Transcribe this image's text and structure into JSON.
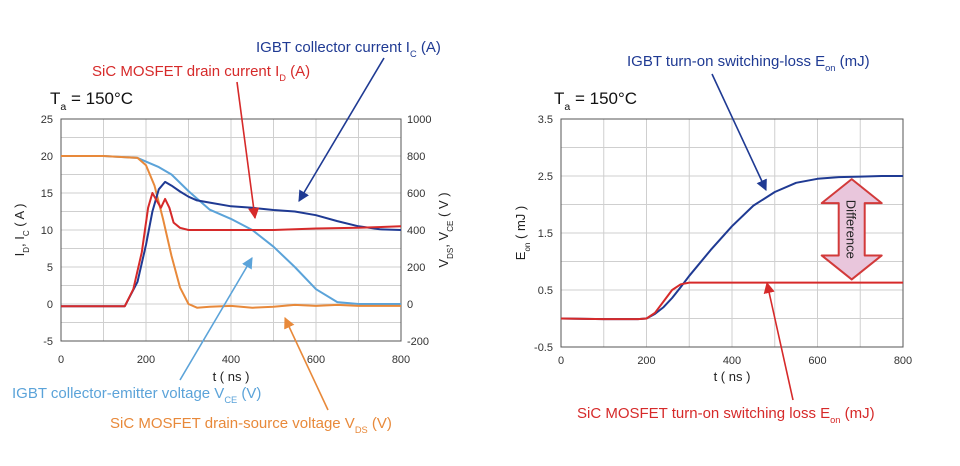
{
  "colors": {
    "ic": "#1f3a93",
    "id": "#d62a2a",
    "vce": "#5ba3d9",
    "vds": "#e8893a",
    "arrow_fill": "#e9c6dc",
    "arrow_stroke": "#d23a3a"
  },
  "chart_data": [
    {
      "type": "line",
      "temperature": {
        "main": "T",
        "sub": "a",
        "rest": " = 150°C"
      },
      "xlabel": "t ( ns )",
      "ylabel_left": {
        "parts": [
          "I",
          "D",
          ", I",
          "C",
          " ( A )"
        ]
      },
      "ylabel_right": {
        "parts": [
          "V",
          "DS",
          ", V",
          "CE",
          " ( V )"
        ]
      },
      "xlim": [
        0,
        800
      ],
      "ylim_left": [
        -5,
        25
      ],
      "ylim_right": [
        -200,
        1000
      ],
      "xticks": [
        "0",
        "200",
        "400",
        "600",
        "800"
      ],
      "yticks_left": [
        "-5",
        "0",
        "5",
        "10",
        "15",
        "20",
        "25"
      ],
      "yticks_right": [
        "-200",
        "0",
        "200",
        "400",
        "600",
        "800",
        "1000"
      ],
      "grid": true,
      "series": [
        {
          "name": "IGBT collector current I_C (A)",
          "axis": "left",
          "color_key": "ic",
          "x": [
            0,
            150,
            180,
            200,
            215,
            230,
            245,
            260,
            280,
            300,
            320,
            350,
            400,
            450,
            500,
            550,
            600,
            650,
            700,
            750,
            800
          ],
          "y": [
            -0.3,
            -0.3,
            3,
            8,
            12.5,
            15.5,
            16.5,
            16,
            15.2,
            14.5,
            14,
            13.7,
            13.2,
            13,
            12.7,
            12.5,
            12,
            11.2,
            10.5,
            10.1,
            10
          ]
        },
        {
          "name": "SiC MOSFET drain current I_D (A)",
          "axis": "left",
          "color_key": "id",
          "x": [
            0,
            150,
            170,
            190,
            205,
            215,
            225,
            235,
            245,
            255,
            265,
            280,
            300,
            350,
            400,
            500,
            600,
            700,
            800
          ],
          "y": [
            -0.3,
            -0.3,
            2,
            7,
            13,
            15,
            14,
            13,
            14.2,
            13,
            11,
            10.3,
            10,
            10,
            10,
            10,
            10.2,
            10.3,
            10.5
          ]
        },
        {
          "name": "IGBT collector-emitter voltage V_CE (V)",
          "axis": "right",
          "color_key": "vce",
          "x": [
            0,
            100,
            180,
            210,
            230,
            260,
            300,
            350,
            400,
            450,
            500,
            550,
            600,
            650,
            700,
            750,
            800
          ],
          "y": [
            800,
            800,
            790,
            760,
            740,
            700,
            610,
            510,
            460,
            400,
            310,
            200,
            80,
            10,
            0,
            0,
            0
          ]
        },
        {
          "name": "SiC MOSFET drain-source voltage V_DS (V)",
          "axis": "right",
          "color_key": "vds",
          "x": [
            0,
            100,
            180,
            200,
            220,
            240,
            260,
            280,
            300,
            320,
            350,
            400,
            450,
            500,
            550,
            600,
            650,
            700,
            800
          ],
          "y": [
            800,
            800,
            790,
            750,
            640,
            460,
            260,
            90,
            0,
            -20,
            -15,
            -10,
            -20,
            -15,
            -5,
            -10,
            -5,
            -10,
            -10
          ]
        }
      ],
      "annotations": [
        {
          "parts": [
            "IGBT collector current I",
            "C",
            " (A)"
          ],
          "color_key": "ic"
        },
        {
          "parts": [
            "SiC MOSFET drain current I",
            "D",
            " (A)"
          ],
          "color_key": "id"
        },
        {
          "parts": [
            "IGBT collector-emitter voltage V",
            "CE",
            " (V)"
          ],
          "color_key": "vce"
        },
        {
          "parts": [
            "SiC MOSFET drain-source voltage V",
            "DS",
            " (V)"
          ],
          "color_key": "vds"
        }
      ]
    },
    {
      "type": "line",
      "temperature": {
        "main": "T",
        "sub": "a",
        "rest": " = 150°C"
      },
      "xlabel": "t ( ns )",
      "ylabel": {
        "parts": [
          "E",
          "on",
          " ( mJ )"
        ]
      },
      "xlim": [
        0,
        800
      ],
      "ylim": [
        -0.5,
        3.5
      ],
      "xticks": [
        "0",
        "200",
        "400",
        "600",
        "800"
      ],
      "yticks": [
        "-0.5",
        "0.5",
        "1.5",
        "2.5",
        "3.5"
      ],
      "grid": true,
      "series": [
        {
          "name": "IGBT turn-on switching-loss E_on (mJ)",
          "color_key": "ic",
          "x": [
            0,
            100,
            180,
            200,
            220,
            240,
            260,
            280,
            300,
            350,
            400,
            450,
            500,
            550,
            600,
            650,
            700,
            750,
            800
          ],
          "y": [
            0,
            -0.01,
            -0.01,
            0,
            0.08,
            0.2,
            0.36,
            0.55,
            0.75,
            1.2,
            1.62,
            1.98,
            2.22,
            2.38,
            2.45,
            2.48,
            2.49,
            2.5,
            2.5
          ]
        },
        {
          "name": "SiC MOSFET turn-on switching loss E_on (mJ)",
          "color_key": "id",
          "x": [
            0,
            100,
            180,
            200,
            220,
            240,
            260,
            280,
            300,
            350,
            400,
            500,
            600,
            700,
            800
          ],
          "y": [
            0,
            -0.01,
            -0.01,
            0,
            0.1,
            0.3,
            0.5,
            0.6,
            0.63,
            0.63,
            0.63,
            0.63,
            0.63,
            0.63,
            0.63
          ]
        }
      ],
      "difference_label": "Difference",
      "annotations": [
        {
          "parts": [
            "IGBT turn-on switching-loss E",
            "on",
            " (mJ)"
          ],
          "color_key": "ic"
        },
        {
          "parts": [
            "SiC MOSFET turn-on switching loss E",
            "on",
            " (mJ)"
          ],
          "color_key": "id"
        }
      ]
    }
  ]
}
